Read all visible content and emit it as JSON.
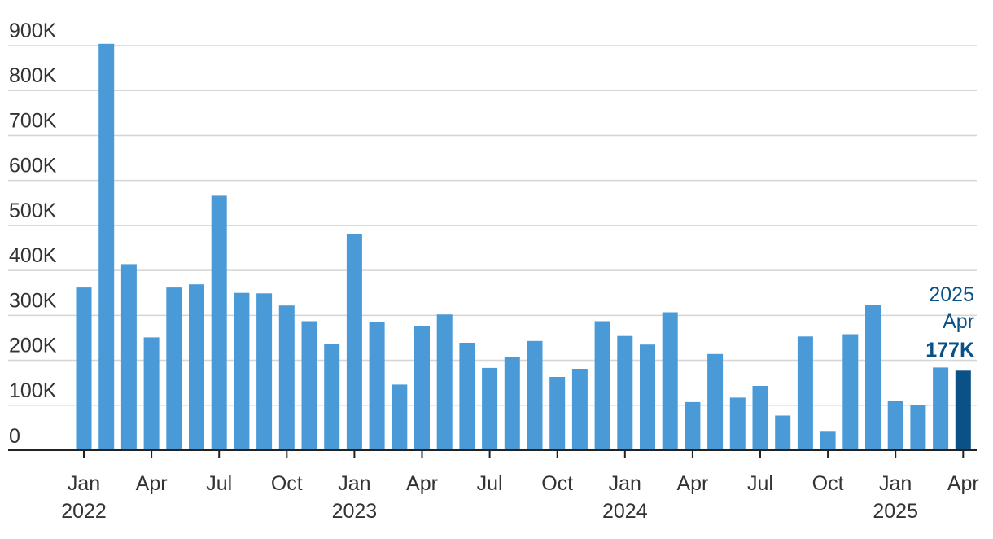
{
  "chart_data": {
    "type": "bar",
    "colors": {
      "bar": "#4a9ad8",
      "highlight": "#0a5187",
      "grid": "#d5d5d5",
      "axis": "#222222",
      "text": "#333333"
    },
    "grid": true,
    "ylim": [
      0,
      900000
    ],
    "y_ticks": [
      {
        "value": 0,
        "label": "0"
      },
      {
        "value": 100000,
        "label": "100K"
      },
      {
        "value": 200000,
        "label": "200K"
      },
      {
        "value": 300000,
        "label": "300K"
      },
      {
        "value": 400000,
        "label": "400K"
      },
      {
        "value": 500000,
        "label": "500K"
      },
      {
        "value": 600000,
        "label": "600K"
      },
      {
        "value": 700000,
        "label": "700K"
      },
      {
        "value": 800000,
        "label": "800K"
      },
      {
        "value": 900000,
        "label": "900K"
      }
    ],
    "categories": [
      "2022-01",
      "2022-02",
      "2022-03",
      "2022-04",
      "2022-05",
      "2022-06",
      "2022-07",
      "2022-08",
      "2022-09",
      "2022-10",
      "2022-11",
      "2022-12",
      "2023-01",
      "2023-02",
      "2023-03",
      "2023-04",
      "2023-05",
      "2023-06",
      "2023-07",
      "2023-08",
      "2023-09",
      "2023-10",
      "2023-11",
      "2023-12",
      "2024-01",
      "2024-02",
      "2024-03",
      "2024-04",
      "2024-05",
      "2024-06",
      "2024-07",
      "2024-08",
      "2024-09",
      "2024-10",
      "2024-11",
      "2024-12",
      "2025-01",
      "2025-02",
      "2025-03",
      "2025-04"
    ],
    "values": [
      362000,
      904000,
      414000,
      251000,
      362000,
      369000,
      566000,
      350000,
      349000,
      322000,
      287000,
      237000,
      481000,
      285000,
      146000,
      276000,
      302000,
      239000,
      183000,
      208000,
      243000,
      163000,
      181000,
      287000,
      254000,
      235000,
      307000,
      107000,
      214000,
      117000,
      143000,
      77000,
      253000,
      43000,
      258000,
      323000,
      110000,
      100000,
      184000,
      177000
    ],
    "x_ticks": [
      {
        "index": 0,
        "month": "Jan",
        "year": "2022"
      },
      {
        "index": 3,
        "month": "Apr",
        "year": ""
      },
      {
        "index": 6,
        "month": "Jul",
        "year": ""
      },
      {
        "index": 9,
        "month": "Oct",
        "year": ""
      },
      {
        "index": 12,
        "month": "Jan",
        "year": "2023"
      },
      {
        "index": 15,
        "month": "Apr",
        "year": ""
      },
      {
        "index": 18,
        "month": "Jul",
        "year": ""
      },
      {
        "index": 21,
        "month": "Oct",
        "year": ""
      },
      {
        "index": 24,
        "month": "Jan",
        "year": "2024"
      },
      {
        "index": 27,
        "month": "Apr",
        "year": ""
      },
      {
        "index": 30,
        "month": "Jul",
        "year": ""
      },
      {
        "index": 33,
        "month": "Oct",
        "year": ""
      },
      {
        "index": 36,
        "month": "Jan",
        "year": "2025"
      },
      {
        "index": 39,
        "month": "Apr",
        "year": ""
      }
    ],
    "highlight": {
      "index": 39,
      "year": "2025",
      "month": "Apr",
      "value_label": "177K"
    }
  }
}
